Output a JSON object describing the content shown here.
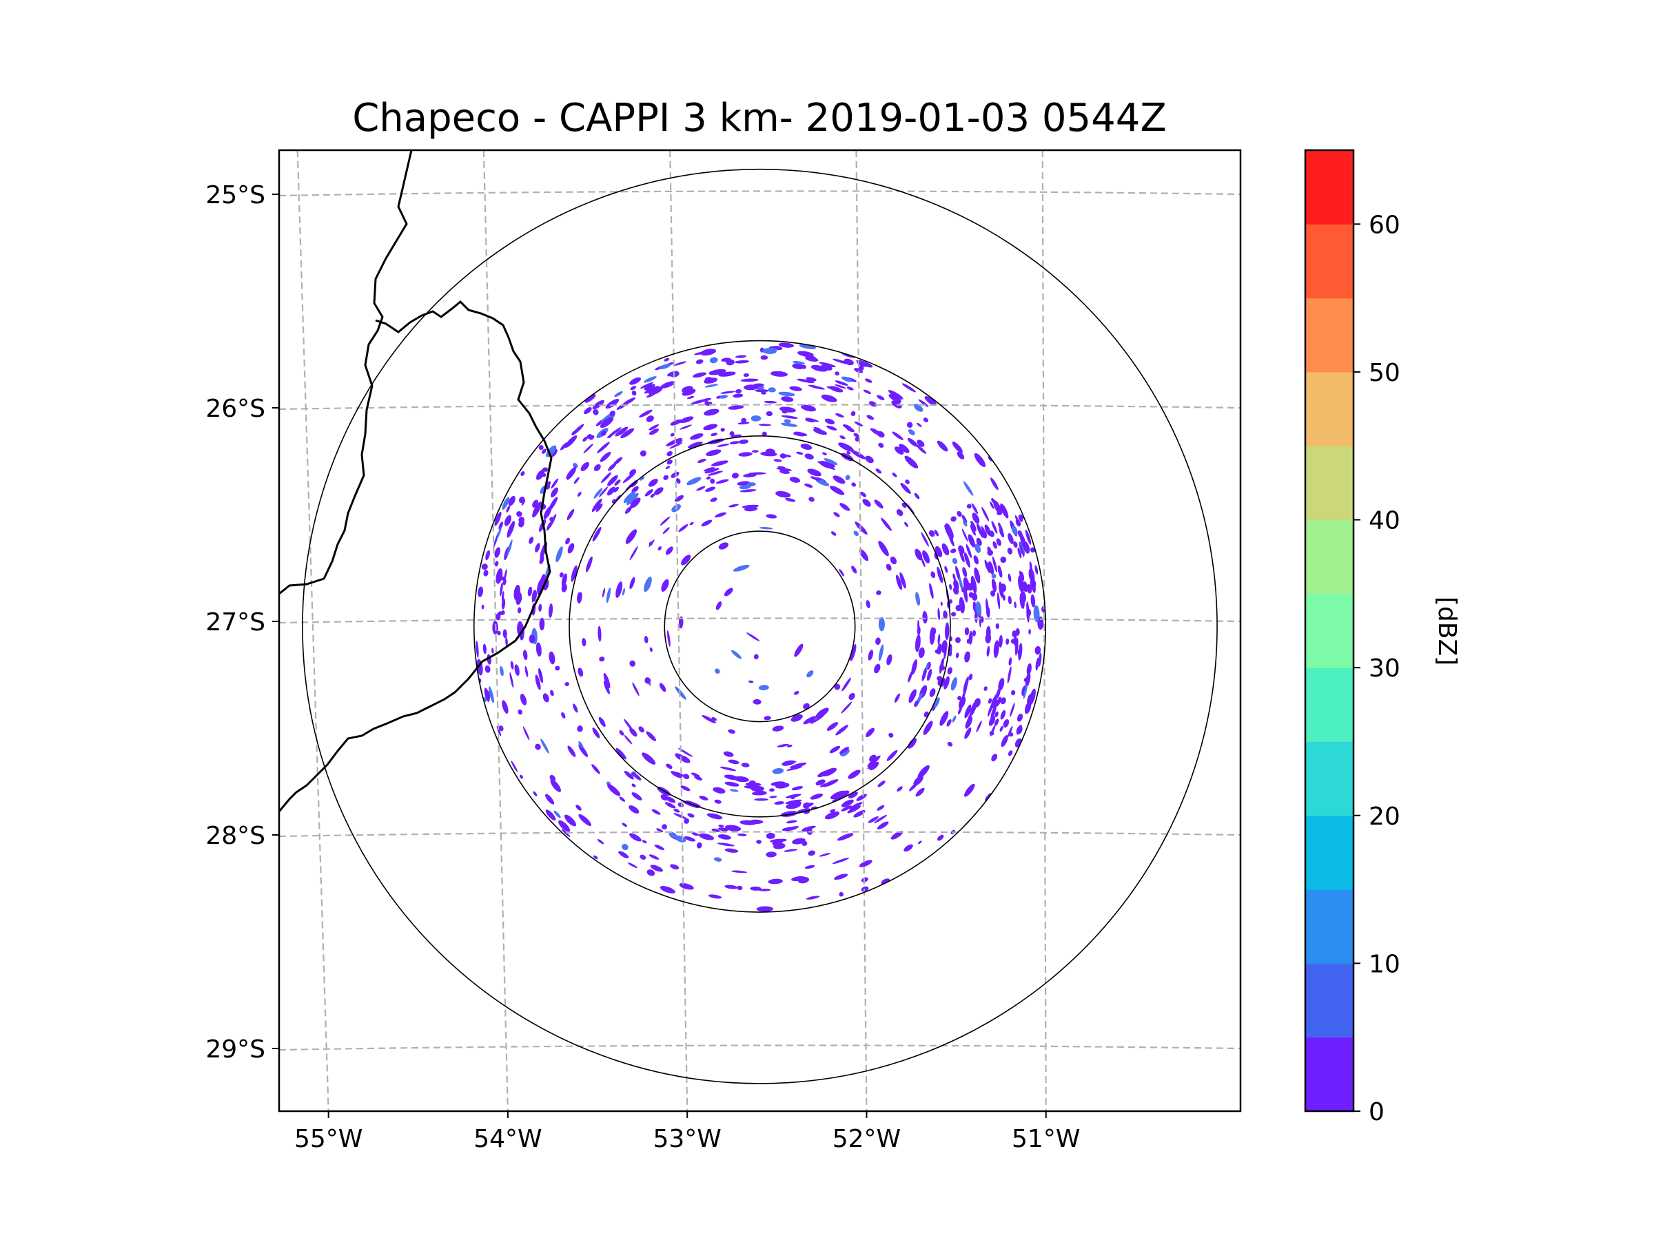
{
  "chart_data": {
    "type": "radar_cappi",
    "title": "Chapeco - CAPPI 3 km- 2019-01-03 0544Z",
    "lon_range": [
      -55.2,
      -50.0
    ],
    "lat_range": [
      -29.3,
      -24.8
    ],
    "radar_center": {
      "lon": -52.6,
      "lat": -27.03
    },
    "range_rings_km": [
      50,
      100,
      150,
      240
    ],
    "x_ticks": [
      {
        "value": -55,
        "label": "55°W"
      },
      {
        "value": -54,
        "label": "54°W"
      },
      {
        "value": -53,
        "label": "53°W"
      },
      {
        "value": -52,
        "label": "52°W"
      },
      {
        "value": -51,
        "label": "51°W"
      }
    ],
    "y_ticks": [
      {
        "value": -25,
        "label": "25°S"
      },
      {
        "value": -26,
        "label": "26°S"
      },
      {
        "value": -27,
        "label": "27°S"
      },
      {
        "value": -28,
        "label": "28°S"
      },
      {
        "value": -29,
        "label": "29°S"
      }
    ],
    "colorbar": {
      "label": "[dBZ]",
      "min": 0,
      "max": 65,
      "ticks": [
        {
          "value": 0,
          "label": "0"
        },
        {
          "value": 10,
          "label": "10"
        },
        {
          "value": 20,
          "label": "20"
        },
        {
          "value": 30,
          "label": "30"
        },
        {
          "value": 40,
          "label": "40"
        },
        {
          "value": 50,
          "label": "50"
        },
        {
          "value": 60,
          "label": "60"
        }
      ],
      "bins": [
        {
          "from": 0,
          "to": 5,
          "color": "#6e1eff"
        },
        {
          "from": 5,
          "to": 10,
          "color": "#4364f0"
        },
        {
          "from": 10,
          "to": 15,
          "color": "#2a8ff0"
        },
        {
          "from": 15,
          "to": 20,
          "color": "#0abbe6"
        },
        {
          "from": 20,
          "to": 25,
          "color": "#2cd9d6"
        },
        {
          "from": 25,
          "to": 30,
          "color": "#4df0c0"
        },
        {
          "from": 30,
          "to": 35,
          "color": "#7cfaa8"
        },
        {
          "from": 35,
          "to": 40,
          "color": "#a3f08e"
        },
        {
          "from": 40,
          "to": 45,
          "color": "#cbd77a"
        },
        {
          "from": 45,
          "to": 50,
          "color": "#f2bb6a"
        },
        {
          "from": 50,
          "to": 55,
          "color": "#ff8e4d"
        },
        {
          "from": 55,
          "to": 60,
          "color": "#ff5a33"
        },
        {
          "from": 60,
          "to": 65,
          "color": "#ff1e1e"
        }
      ]
    },
    "echo_color": "#6e1eff",
    "echo_color_light": "#4c72f5",
    "dominant_reflectivity_dbz": [
      0,
      5
    ],
    "regions": [
      {
        "description": "dense echoes north of radar",
        "lon_range": [
          -53.6,
          -51.5
        ],
        "lat_range": [
          -26.7,
          -25.4
        ]
      },
      {
        "description": "dense echoes east of radar",
        "lon_range": [
          -51.8,
          -50.9
        ],
        "lat_range": [
          -27.8,
          -26.5
        ]
      },
      {
        "description": "dense echoes south of radar",
        "lon_range": [
          -52.8,
          -51.8
        ],
        "lat_range": [
          -28.5,
          -27.8
        ]
      }
    ]
  }
}
